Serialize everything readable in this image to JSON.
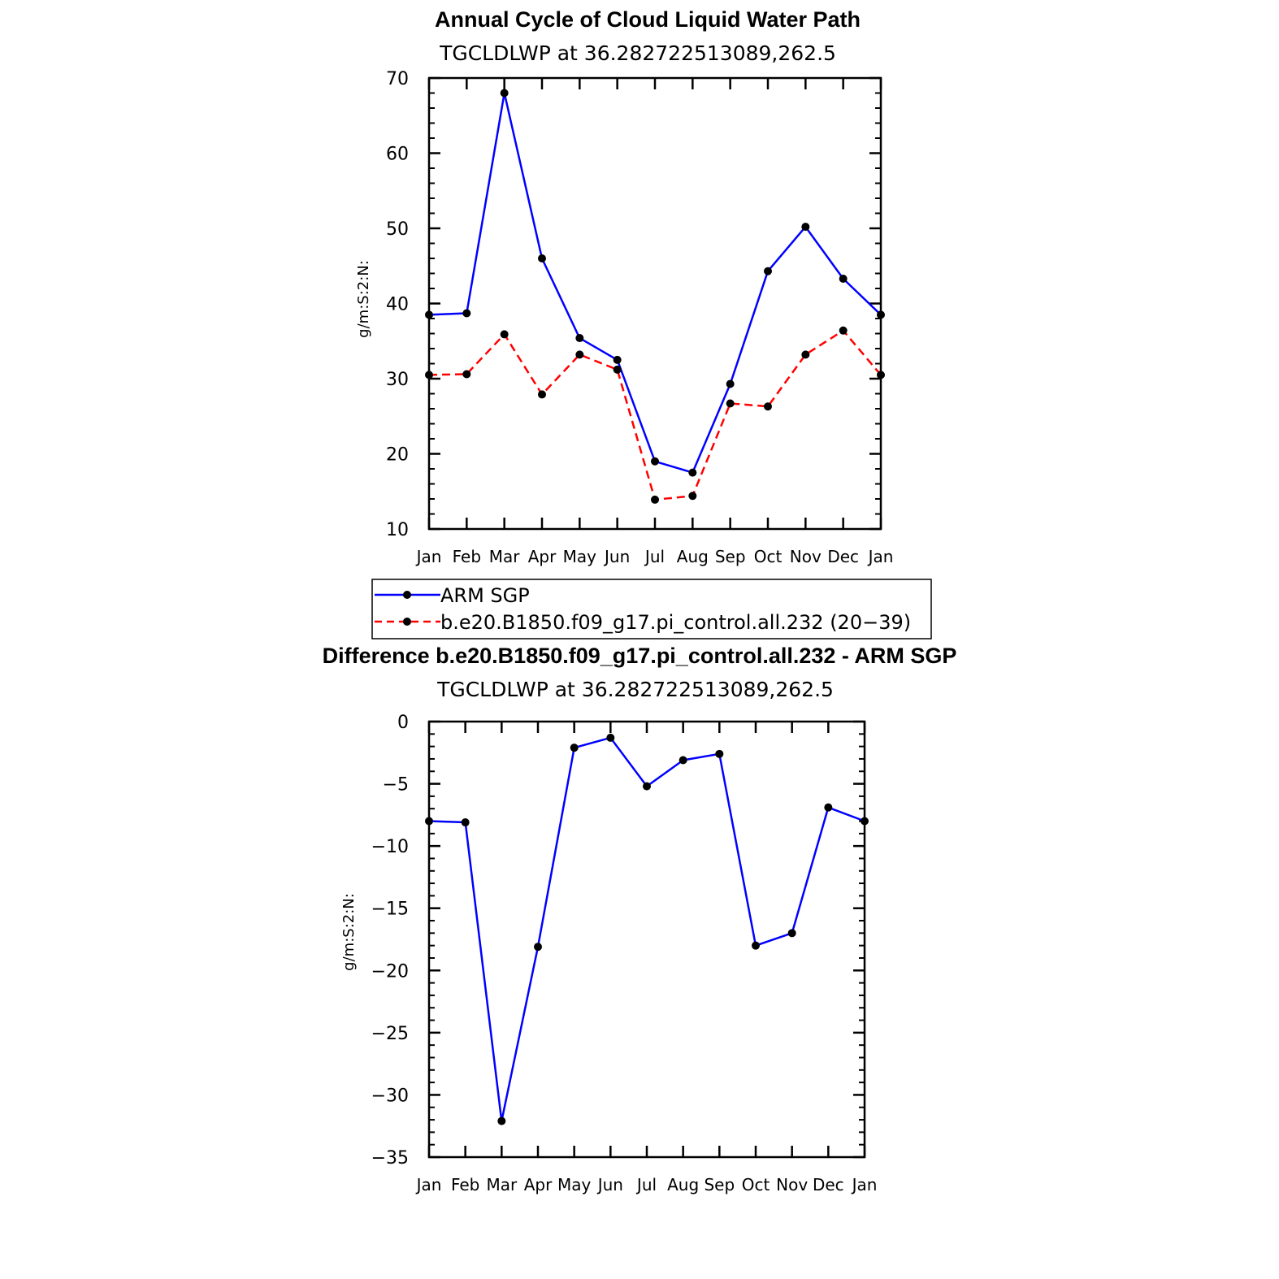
{
  "chart_data": [
    {
      "type": "line",
      "title": "Annual Cycle of Cloud Liquid Water Path",
      "subtitle": "TGCLDLWP  at  36.282722513089,262.5",
      "ylabel": "g/m:S:2:N:",
      "xlabel": "",
      "ylim": [
        10,
        70
      ],
      "yticks": [
        10,
        20,
        30,
        40,
        50,
        60,
        70
      ],
      "categories": [
        "Jan",
        "Feb",
        "Mar",
        "Apr",
        "May",
        "Jun",
        "Jul",
        "Aug",
        "Sep",
        "Oct",
        "Nov",
        "Dec",
        "Jan"
      ],
      "series": [
        {
          "name": "ARM SGP",
          "color": "#0000ff",
          "dashed": false,
          "values": [
            38.5,
            38.7,
            68.0,
            46.0,
            35.4,
            32.5,
            19.0,
            17.5,
            29.3,
            44.3,
            50.2,
            43.3,
            38.5
          ]
        },
        {
          "name": "b.e20.B1850.f09_g17.pi_control.all.232 (20−39)",
          "color": "#ff0000",
          "dashed": true,
          "values": [
            30.5,
            30.6,
            35.9,
            27.9,
            33.2,
            31.2,
            13.9,
            14.4,
            26.7,
            26.3,
            33.2,
            36.4,
            30.5
          ]
        }
      ],
      "legend": "below"
    },
    {
      "type": "line",
      "title": "Difference b.e20.B1850.f09_g17.pi_control.all.232 - ARM SGP",
      "subtitle": "TGCLDLWP  at  36.282722513089,262.5",
      "ylabel": "g/m:S:2:N:",
      "xlabel": "",
      "ylim": [
        -35,
        0
      ],
      "yticks": [
        -35,
        -30,
        -25,
        -20,
        -15,
        -10,
        -5,
        0
      ],
      "categories": [
        "Jan",
        "Feb",
        "Mar",
        "Apr",
        "May",
        "Jun",
        "Jul",
        "Aug",
        "Sep",
        "Oct",
        "Nov",
        "Dec",
        "Jan"
      ],
      "series": [
        {
          "name": "Difference",
          "color": "#0000ff",
          "dashed": false,
          "values": [
            -8.0,
            -8.1,
            -32.1,
            -18.1,
            -2.1,
            -1.3,
            -5.2,
            -3.1,
            -2.6,
            -18.0,
            -17.0,
            -6.9,
            -8.0
          ]
        }
      ]
    }
  ]
}
